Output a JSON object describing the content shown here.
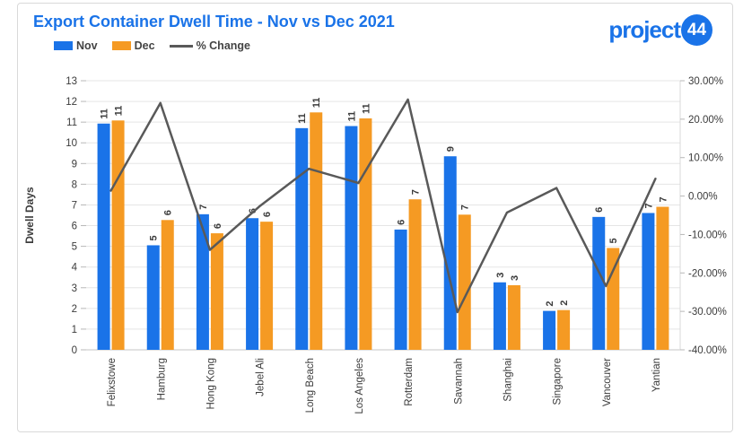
{
  "page": {
    "title": "Export Container Dwell Time - Nov vs Dec 2021"
  },
  "logo": {
    "text": "project",
    "badge": "44",
    "color": "#1a73e8"
  },
  "legend": {
    "items": [
      {
        "label": "Nov",
        "type": "swatch",
        "color": "#1a73e8"
      },
      {
        "label": "Dec",
        "type": "swatch",
        "color": "#f59a23"
      },
      {
        "label": "% Change",
        "type": "line",
        "color": "#595959"
      }
    ]
  },
  "chart_data": {
    "type": "combo: grouped bar (left axis) + line (right axis)",
    "title": "Export Container Dwell Time - Nov vs Dec 2021",
    "categories": [
      "Felixstowe",
      "Hamburg",
      "Hong Kong",
      "Jebel Ali",
      "Long Beach",
      "Los Angeles",
      "Rotterdam",
      "Savannah",
      "Shanghai",
      "Singapore",
      "Vancouver",
      "Yantian"
    ],
    "series": [
      {
        "name": "Nov",
        "type": "bar",
        "axis": "left",
        "color": "#1a73e8",
        "values": [
          10.93,
          5.05,
          6.55,
          6.36,
          10.71,
          10.81,
          5.81,
          9.35,
          3.26,
          1.88,
          6.42,
          6.61
        ],
        "labels": [
          "11",
          "5",
          "7",
          "6",
          "11",
          "11",
          "6",
          "9",
          "3",
          "2",
          "6",
          "7"
        ]
      },
      {
        "name": "Dec",
        "type": "bar",
        "axis": "left",
        "color": "#f59a23",
        "values": [
          11.08,
          6.27,
          5.63,
          6.19,
          11.47,
          11.18,
          7.27,
          6.53,
          3.12,
          1.92,
          4.92,
          6.91
        ],
        "labels": [
          "11",
          "6",
          "6",
          "6",
          "11",
          "11",
          "7",
          "7",
          "3",
          "2",
          "5",
          "7"
        ]
      },
      {
        "name": "% Change",
        "type": "line",
        "axis": "right",
        "color": "#595959",
        "values": [
          1.4,
          24.2,
          -14.0,
          -2.7,
          7.1,
          3.4,
          25.1,
          -30.2,
          -4.3,
          2.1,
          -23.4,
          4.5
        ]
      }
    ],
    "left_axis": {
      "title": "Dwell Days",
      "min": 0,
      "max": 13,
      "tick_values": [
        0,
        1,
        2,
        3,
        4,
        5,
        6,
        7,
        8,
        9,
        10,
        11,
        12,
        13
      ],
      "tick_labels": [
        "0",
        "1",
        "2",
        "3",
        "4",
        "5",
        "6",
        "7",
        "8",
        "9",
        "10",
        "11",
        "12",
        "13"
      ]
    },
    "right_axis": {
      "min": -40,
      "max": 30,
      "tick_values": [
        30,
        20,
        10,
        0,
        -10,
        -20,
        -30,
        -40
      ],
      "tick_labels": [
        "30.00%",
        "20.00%",
        "10.00%",
        "0.00%",
        "-10.00%",
        "-20.00%",
        "-30.00%",
        "-40.00%"
      ]
    },
    "grid": true,
    "legend_position": "top-left",
    "ylim_left": [
      0,
      13
    ],
    "ylim_right": [
      -40,
      30
    ]
  }
}
